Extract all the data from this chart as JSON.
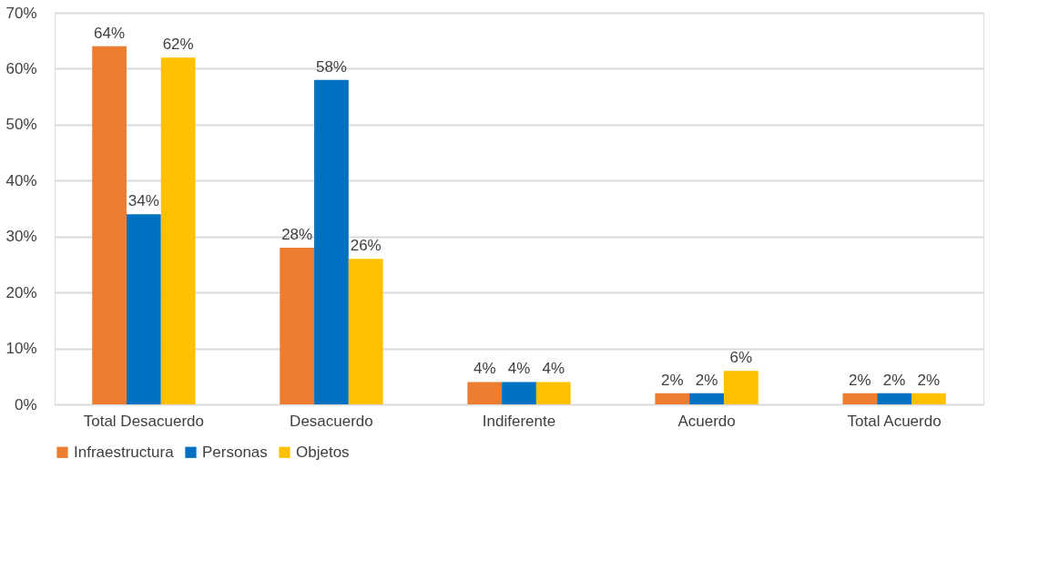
{
  "chart_data": {
    "type": "bar",
    "categories": [
      "Total Desacuerdo",
      "Desacuerdo",
      "Indiferente",
      "Acuerdo",
      "Total Acuerdo"
    ],
    "series": [
      {
        "name": "Infraestructura",
        "color": "#ed7d31",
        "values": [
          64,
          28,
          4,
          2,
          2
        ],
        "value_labels": [
          "64%",
          "28%",
          "4%",
          "2%",
          "2%"
        ]
      },
      {
        "name": "Personas",
        "color": "#0070c0",
        "values": [
          34,
          58,
          4,
          2,
          2
        ],
        "value_labels": [
          "34%",
          "58%",
          "4%",
          "2%",
          "2%"
        ]
      },
      {
        "name": "Objetos",
        "color": "#ffc000",
        "values": [
          62,
          26,
          4,
          6,
          2
        ],
        "value_labels": [
          "62%",
          "26%",
          "4%",
          "6%",
          "2%"
        ]
      }
    ],
    "ylim": [
      0,
      70
    ],
    "yticks": [
      {
        "value": 0,
        "label": "0%"
      },
      {
        "value": 10,
        "label": "10%"
      },
      {
        "value": 20,
        "label": "20%"
      },
      {
        "value": 30,
        "label": "30%"
      },
      {
        "value": 40,
        "label": "40%"
      },
      {
        "value": 50,
        "label": "50%"
      },
      {
        "value": 60,
        "label": "60%"
      },
      {
        "value": 70,
        "label": "70%"
      }
    ],
    "grid": "y",
    "legend": "bottom"
  }
}
